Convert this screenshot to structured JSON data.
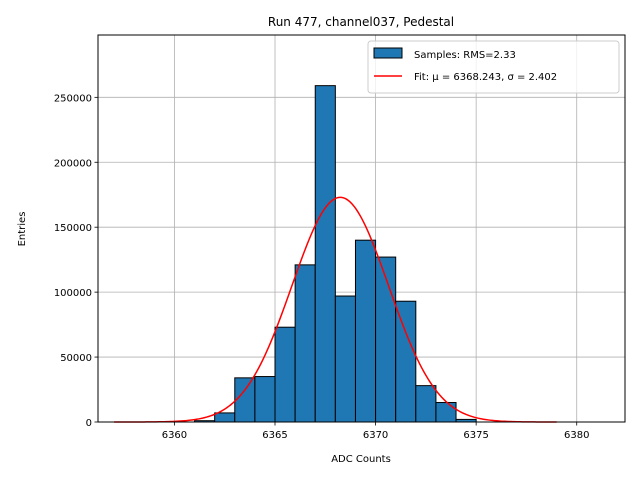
{
  "chart_data": {
    "type": "bar",
    "title": "Run 477, channel037, Pedestal",
    "xlabel": "ADC Counts",
    "ylabel": "Entries",
    "xlim": [
      6356.2,
      6382.4
    ],
    "ylim": [
      0,
      298000
    ],
    "xticks": [
      6360,
      6365,
      6370,
      6375,
      6380
    ],
    "yticks": [
      0,
      50000,
      100000,
      150000,
      200000,
      250000
    ],
    "grid": true,
    "legend_position": "top-right",
    "bin_width": 1,
    "histogram": {
      "name": "Samples: RMS=2.33",
      "color": "#1f77b4",
      "edge_color": "#000000",
      "bin_centers": [
        6361.5,
        6362.5,
        6363.5,
        6364.5,
        6365.5,
        6366.5,
        6367.5,
        6368.5,
        6369.5,
        6370.5,
        6371.5,
        6372.5,
        6373.5,
        6374.5
      ],
      "values": [
        1000,
        7000,
        34000,
        35000,
        73000,
        121000,
        259000,
        97000,
        140000,
        127000,
        93000,
        28000,
        15000,
        2000
      ]
    },
    "fit": {
      "name": "Fit: μ = 6368.243, σ = 2.402",
      "color": "#ff0000",
      "mu": 6368.243,
      "sigma": 2.402,
      "amplitude": 173000,
      "x_range": [
        6357,
        6379
      ]
    }
  }
}
